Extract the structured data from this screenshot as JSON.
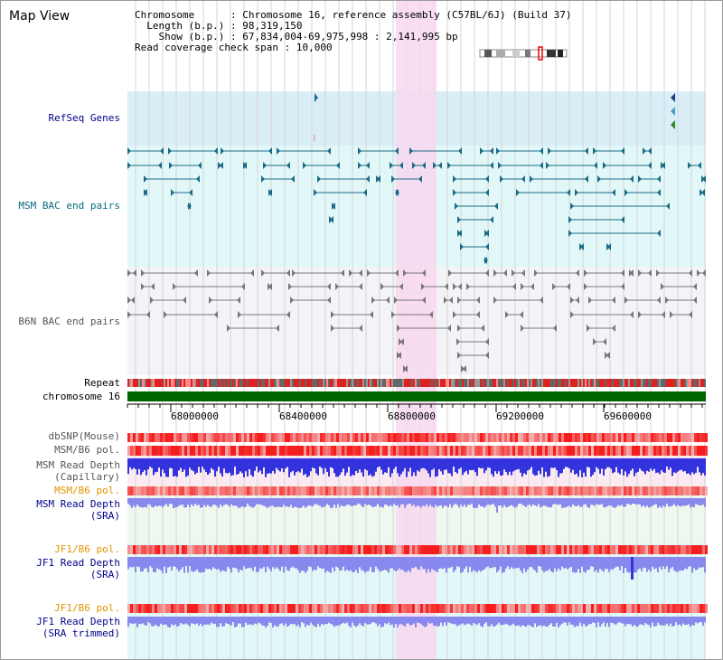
{
  "page": {
    "title": "Map View",
    "info": {
      "chromosome_key": "Chromosome",
      "chromosome_val": "Chromosome 16, reference assembly (C57BL/6J) (Build 37)",
      "length_key": "Length (b.p.)",
      "length_val": "98,319,150",
      "show_key": "Show (b.p.)",
      "show_val": "67,834,004-69,975,998 : 2,141,995 bp",
      "span_key": "Read coverage check span",
      "span_val": "10,000"
    }
  },
  "tracks": {
    "refseq": "RefSeq Genes",
    "msm_bac": "MSM BAC end pairs",
    "b6n_bac": "B6N BAC end pairs",
    "repeat": "Repeat",
    "chromosome": "chromosome 16",
    "dbsnp": "dbSNP(Mouse)",
    "msm_b6_pol_1": "MSM/B6 pol.",
    "msm_read_depth_cap_1": "MSM Read Depth",
    "msm_read_depth_cap_2": "(Capillary)",
    "msm_b6_pol_2": "MSM/B6 pol.",
    "msm_read_depth_sra_1": "MSM Read Depth",
    "msm_read_depth_sra_2": "(SRA)",
    "jf1_b6_pol_1": "JF1/B6 pol.",
    "jf1_read_depth_1": "JF1 Read Depth",
    "jf1_read_depth_2": "(SRA)",
    "jf1_b6_pol_2": "JF1/B6 pol.",
    "jf1_read_depth_trim_1": "JF1 Read Depth",
    "jf1_read_depth_trim_2": "(SRA trimmed)"
  },
  "axis": {
    "ticks": [
      "68000000",
      "68400000",
      "68800000",
      "69200000",
      "69600000"
    ]
  },
  "colors": {
    "refseq_bg": "#daeef8",
    "msm_bg": "#e2f8f8",
    "b6n_bg": "#f4f4f8",
    "highlight": "#f8d8f0",
    "chrom_bar": "#006400",
    "depth_blue": "#3333dd",
    "depth_light": "#8888ee",
    "snp_red": "#ee3333",
    "grid": "#d4d4d4"
  }
}
